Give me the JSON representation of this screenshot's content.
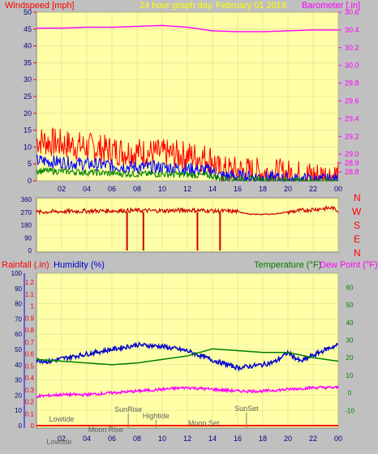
{
  "header": {
    "windspeed_label": "Windspeed [mph]",
    "title": "24 hour graph day",
    "date": "February 01 2019",
    "barometer_label": "Barometer [.in]"
  },
  "lower_header": {
    "rainfall_label": "Rainfall (.in)",
    "humidity_label": "Humidity (%)",
    "temperature_label": "Temperature (°F)",
    "dewpoint_label": "Dew Point (°F)"
  },
  "compass_letters": [
    "N",
    "W",
    "S",
    "E",
    "N"
  ],
  "colors": {
    "background": "#c0c0c0",
    "plot_bg": "#ffffa8",
    "gust": "#ff0000",
    "wind": "#0000ff",
    "wind_low": "#008000",
    "barometer": "#ff00ff",
    "direction": "#cc0000",
    "humidity": "#0000cc",
    "temperature": "#008000",
    "dewpoint": "#ff00ff",
    "rainfall": "#ff0000",
    "tick_text": "#000080"
  },
  "chart_data": [
    {
      "type": "line",
      "name": "wind",
      "title": "24 hour graph day",
      "xlabels": [
        "02",
        "04",
        "06",
        "08",
        "10",
        "12",
        "14",
        "16",
        "18",
        "20",
        "22",
        "00"
      ],
      "y_left": {
        "label": "Windspeed [mph]",
        "ticks": [
          0,
          5,
          10,
          15,
          20,
          25,
          30,
          35,
          40,
          45,
          50
        ],
        "range": [
          0,
          50
        ]
      },
      "y_right": {
        "label": "Barometer [.in]",
        "ticks": [
          28.8,
          28.9,
          29.0,
          29.2,
          29.4,
          29.6,
          29.8,
          30.0,
          30.2,
          30.4,
          30.6
        ],
        "range": [
          28.7,
          30.6
        ]
      },
      "series": [
        {
          "name": "gust",
          "hours": [
            0,
            2,
            4,
            6,
            8,
            10,
            12,
            14,
            14.5,
            16,
            18,
            20,
            22,
            24
          ],
          "values": [
            12,
            11,
            10,
            9,
            8.5,
            8,
            7.5,
            6.5,
            3,
            3,
            2.5,
            2,
            1.5,
            1.5
          ],
          "amplitude": 4.5
        },
        {
          "name": "wind",
          "hours": [
            0,
            2,
            4,
            6,
            8,
            10,
            12,
            14,
            14.5,
            16,
            18,
            20,
            22,
            24
          ],
          "values": [
            6,
            5.5,
            5,
            4.5,
            4,
            4,
            3.5,
            3,
            1.5,
            1.3,
            1,
            0.5,
            0.3,
            0.2
          ],
          "amplitude": 2
        },
        {
          "name": "wind-low",
          "hours": [
            0,
            2,
            4,
            6,
            8,
            10,
            12,
            14,
            14.5,
            16,
            18,
            20,
            22,
            24
          ],
          "values": [
            3,
            2.8,
            2.5,
            2.2,
            2,
            2,
            1.8,
            1.5,
            0.8,
            0.5,
            0.3,
            0.1,
            0,
            0
          ],
          "amplitude": 1
        },
        {
          "name": "barometer",
          "hours": [
            0,
            2,
            4,
            6,
            8,
            10,
            12,
            14,
            16,
            18,
            20,
            22,
            24
          ],
          "values": [
            30.42,
            30.42,
            30.43,
            30.43,
            30.44,
            30.45,
            30.43,
            30.39,
            30.38,
            30.38,
            30.39,
            30.4,
            30.4
          ]
        }
      ]
    },
    {
      "type": "line",
      "name": "wind-direction",
      "y_left": {
        "ticks": [
          0,
          90,
          180,
          270,
          360
        ],
        "range": [
          0,
          360
        ]
      },
      "series": [
        {
          "name": "direction",
          "hours": [
            0,
            2,
            4,
            6,
            8,
            10,
            12,
            14,
            16,
            17,
            18,
            19,
            20,
            22,
            23.5,
            24
          ],
          "values": [
            270,
            275,
            278,
            280,
            282,
            280,
            285,
            280,
            275,
            255,
            255,
            258,
            272,
            290,
            300,
            280
          ],
          "amplitude": 15
        }
      ],
      "drops": [
        7.2,
        8.5,
        12.8,
        14.6
      ]
    },
    {
      "type": "line",
      "name": "humidity-temperature",
      "xlabels": [
        "02",
        "04",
        "06",
        "08",
        "10",
        "12",
        "14",
        "16",
        "18",
        "20",
        "22",
        "00"
      ],
      "y_left_rain": {
        "label": "Rainfall (.in)",
        "ticks": [
          0,
          0.1,
          0.2,
          0.3,
          0.4,
          0.5,
          0.6,
          0.7,
          0.8,
          0.9,
          1,
          1.1,
          1.2
        ]
      },
      "y_left_humidity": {
        "label": "Humidity (%)",
        "ticks": [
          0,
          10,
          20,
          30,
          40,
          50,
          60,
          70,
          80,
          90,
          100
        ],
        "range": [
          0,
          100
        ]
      },
      "y_right": {
        "label": "Temperature (°F)",
        "ticks": [
          -10,
          0,
          10,
          20,
          30,
          40,
          50,
          60
        ],
        "range": [
          -20,
          68
        ]
      },
      "series": [
        {
          "name": "humidity",
          "axis": "humidity",
          "hours": [
            0,
            1,
            2,
            4,
            6,
            8,
            10,
            12,
            14,
            16,
            18,
            19,
            20,
            21,
            22,
            23,
            24
          ],
          "values": [
            43,
            42,
            44,
            47,
            50,
            53,
            52,
            49,
            43,
            38,
            40,
            42,
            48,
            42,
            46,
            50,
            53
          ],
          "amplitude": 1.5
        },
        {
          "name": "temperature",
          "axis": "temp",
          "hours": [
            0,
            2,
            4,
            6,
            8,
            10,
            12,
            14,
            16,
            18,
            20,
            22,
            24
          ],
          "values": [
            19,
            18,
            17,
            16,
            17,
            19,
            21,
            25,
            24,
            23,
            23,
            20,
            18
          ]
        },
        {
          "name": "dewpoint",
          "axis": "temp",
          "hours": [
            0,
            2,
            4,
            6,
            8,
            10,
            12,
            14,
            16,
            18,
            20,
            22,
            24
          ],
          "values": [
            -2,
            -1,
            -1,
            0,
            1,
            2,
            3,
            2,
            1,
            1,
            2,
            3,
            3
          ],
          "amplitude": 0.8
        },
        {
          "name": "rainfall",
          "axis": "rain",
          "hours": [
            0,
            24
          ],
          "values": [
            0,
            0
          ]
        }
      ],
      "astro": [
        {
          "label": "Lowtide",
          "hour": 2.0
        },
        {
          "label": "Lowtide",
          "hour": 1.8
        },
        {
          "label": "Moon Rise",
          "hour": 5.5
        },
        {
          "label": "SunRise",
          "hour": 7.3
        },
        {
          "label": "Hightide",
          "hour": 9.5
        },
        {
          "label": "Moon Set",
          "hour": 13.3
        },
        {
          "label": "SunSet",
          "hour": 16.7
        }
      ]
    }
  ]
}
